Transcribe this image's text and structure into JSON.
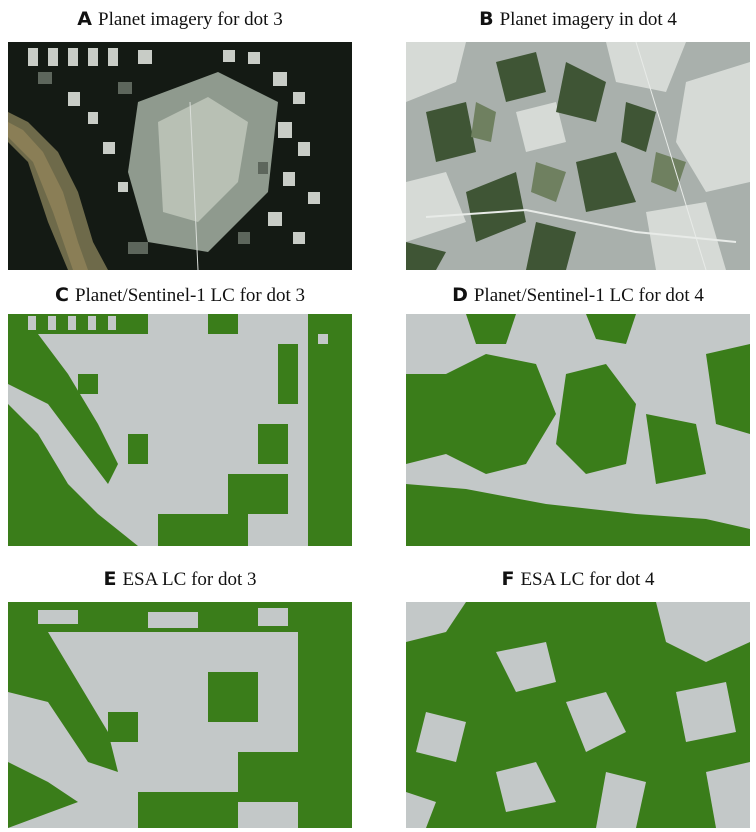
{
  "colors": {
    "forest_green": "#3a7d1a",
    "nonforest_gray": "#c3c8c8",
    "dark_imagery": "#0f1410",
    "light_imagery": "#c9cdca"
  },
  "panels": [
    {
      "letter": "A",
      "title": "Planet imagery for dot 3"
    },
    {
      "letter": "B",
      "title": "Planet imagery in dot 4"
    },
    {
      "letter": "C",
      "title": "Planet/Sentinel-1 LC for dot 3"
    },
    {
      "letter": "D",
      "title": "Planet/Sentinel-1 LC for dot 4"
    },
    {
      "letter": "E",
      "title": "ESA LC for dot 3"
    },
    {
      "letter": "F",
      "title": "ESA LC for dot 4"
    }
  ]
}
